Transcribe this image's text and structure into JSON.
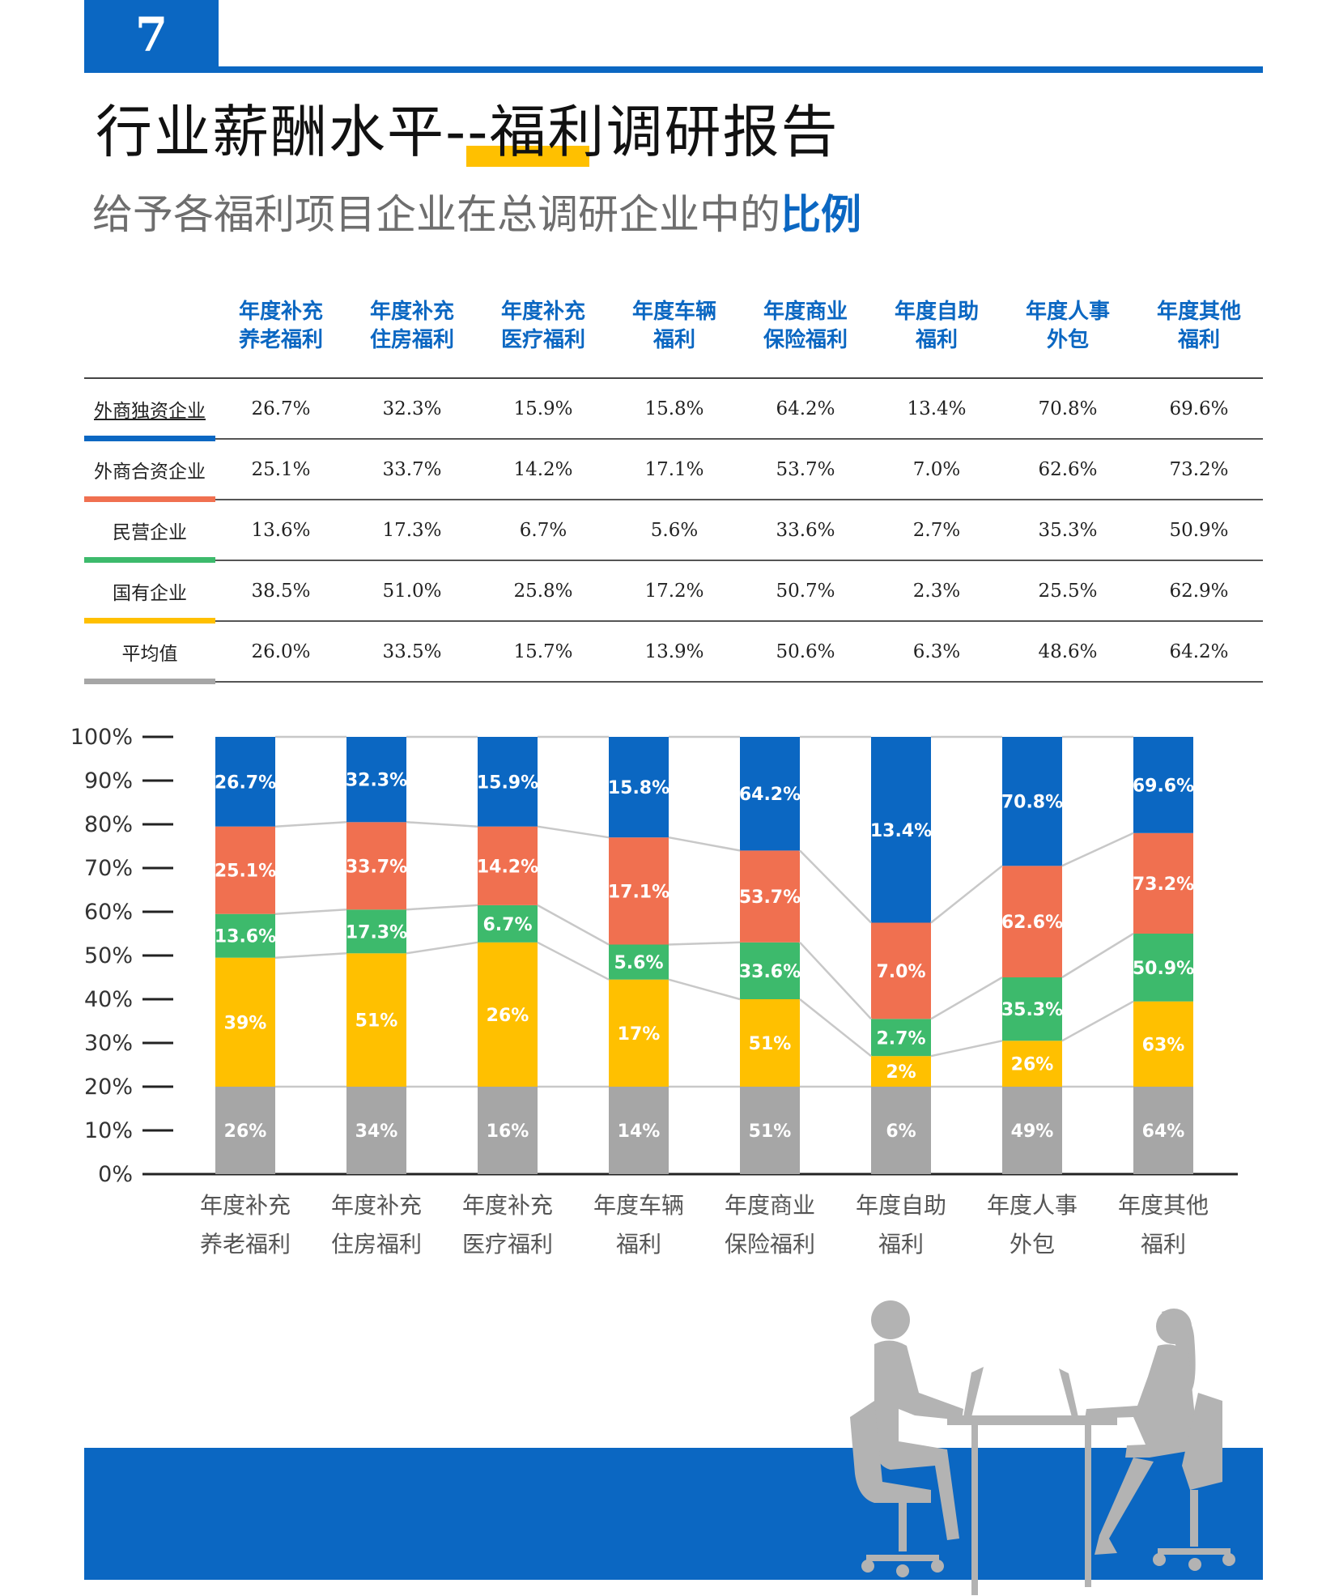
{
  "page_number": "7",
  "title": "行业薪酬水平--福利调研报告",
  "subtitle_main": "给予各福利项目企业在总调研企业中的",
  "subtitle_emph": "比例",
  "table": {
    "headers": [
      [
        "年度补充",
        "养老福利"
      ],
      [
        "年度补充",
        "住房福利"
      ],
      [
        "年度补充",
        "医疗福利"
      ],
      [
        "年度车辆",
        "福利"
      ],
      [
        "年度商业",
        "保险福利"
      ],
      [
        "年度自助",
        "福利"
      ],
      [
        "年度人事",
        "外包"
      ],
      [
        "年度其他",
        "福利"
      ]
    ],
    "rows": [
      {
        "label": "外商独资企业",
        "color": "#0b67c2",
        "values": [
          "26.7%",
          "32.3%",
          "15.9%",
          "15.8%",
          "64.2%",
          "13.4%",
          "70.8%",
          "69.6%"
        ]
      },
      {
        "label": "外商合资企业",
        "color": "#f07050",
        "values": [
          "25.1%",
          "33.7%",
          "14.2%",
          "17.1%",
          "53.7%",
          "7.0%",
          "62.6%",
          "73.2%"
        ]
      },
      {
        "label": "民营企业",
        "color": "#3dba6c",
        "values": [
          "13.6%",
          "17.3%",
          "6.7%",
          "5.6%",
          "33.6%",
          "2.7%",
          "35.3%",
          "50.9%"
        ]
      },
      {
        "label": "国有企业",
        "color": "#ffc000",
        "values": [
          "38.5%",
          "51.0%",
          "25.8%",
          "17.2%",
          "50.7%",
          "2.3%",
          "25.5%",
          "62.9%"
        ]
      },
      {
        "label": "平均值",
        "color": "#a6a6a6",
        "values": [
          "26.0%",
          "33.5%",
          "15.7%",
          "13.9%",
          "50.6%",
          "6.3%",
          "48.6%",
          "64.2%"
        ]
      }
    ]
  },
  "chart_data": {
    "type": "bar",
    "stacked": true,
    "categories": [
      [
        "年度补充",
        "养老福利"
      ],
      [
        "年度补充",
        "住房福利"
      ],
      [
        "年度补充",
        "医疗福利"
      ],
      [
        "年度车辆",
        "福利"
      ],
      [
        "年度商业",
        "保险福利"
      ],
      [
        "年度自助",
        "福利"
      ],
      [
        "年度人事",
        "外包"
      ],
      [
        "年度其他",
        "福利"
      ]
    ],
    "y_ticks": [
      "0%",
      "10%",
      "20%",
      "30%",
      "40%",
      "50%",
      "60%",
      "70%",
      "80%",
      "90%",
      "100%"
    ],
    "ylim": [
      0,
      100
    ],
    "series": [
      {
        "color": "#a6a6a6",
        "segments": [
          [
            0,
            20
          ],
          [
            0,
            20
          ],
          [
            0,
            20
          ],
          [
            0,
            20
          ],
          [
            0,
            20
          ],
          [
            0,
            20
          ],
          [
            0,
            20
          ],
          [
            0,
            20
          ]
        ],
        "labels": [
          "26%",
          "34%",
          "16%",
          "14%",
          "51%",
          "6%",
          "49%",
          "64%"
        ]
      },
      {
        "color": "#ffc000",
        "segments": [
          [
            20,
            49.5
          ],
          [
            20,
            50.5
          ],
          [
            20,
            53
          ],
          [
            20,
            44.5
          ],
          [
            20,
            40
          ],
          [
            20,
            27
          ],
          [
            20,
            30.5
          ],
          [
            20,
            39.5
          ]
        ],
        "labels": [
          "39%",
          "51%",
          "26%",
          "17%",
          "51%",
          "2%",
          "26%",
          "63%"
        ]
      },
      {
        "color": "#3dba6c",
        "segments": [
          [
            49.5,
            59.5
          ],
          [
            50.5,
            60.5
          ],
          [
            53,
            61.5
          ],
          [
            44.5,
            52.5
          ],
          [
            40,
            53
          ],
          [
            27,
            35.5
          ],
          [
            30.5,
            45
          ],
          [
            39.5,
            55
          ]
        ],
        "labels": [
          "13.6%",
          "17.3%",
          "6.7%",
          "5.6%",
          "33.6%",
          "2.7%",
          "35.3%",
          "50.9%"
        ]
      },
      {
        "color": "#f07050",
        "segments": [
          [
            59.5,
            79.5
          ],
          [
            60.5,
            80.5
          ],
          [
            61.5,
            79.5
          ],
          [
            52.5,
            77
          ],
          [
            53,
            74
          ],
          [
            35.5,
            57.5
          ],
          [
            45,
            70.5
          ],
          [
            55,
            78
          ]
        ],
        "labels": [
          "25.1%",
          "33.7%",
          "14.2%",
          "17.1%",
          "53.7%",
          "7.0%",
          "62.6%",
          "73.2%"
        ]
      },
      {
        "color": "#0b67c2",
        "segments": [
          [
            79.5,
            100
          ],
          [
            80.5,
            100
          ],
          [
            79.5,
            100
          ],
          [
            77,
            100
          ],
          [
            74,
            100
          ],
          [
            57.5,
            100
          ],
          [
            70.5,
            100
          ],
          [
            78,
            100
          ]
        ],
        "labels": [
          "26.7%",
          "32.3%",
          "15.9%",
          "15.8%",
          "64.2%",
          "13.4%",
          "70.8%",
          "69.6%"
        ]
      }
    ],
    "grid": false,
    "legend": "none",
    "connector_lines": true
  },
  "illustration": "meeting-silhouette"
}
